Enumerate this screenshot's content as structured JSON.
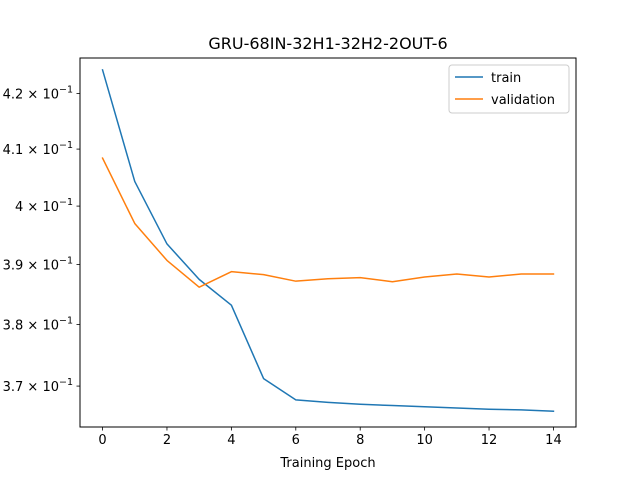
{
  "chart_data": {
    "type": "line",
    "title": "GRU-68IN-32H1-32H2-2OUT-6",
    "xlabel": "Training Epoch",
    "ylabel": "",
    "x": [
      0,
      1,
      2,
      3,
      4,
      5,
      6,
      7,
      8,
      9,
      10,
      11,
      12,
      13,
      14
    ],
    "xlim": [
      -0.7,
      14.7
    ],
    "ylim": [
      0.3635,
      0.4265
    ],
    "yscale": "log",
    "grid": false,
    "legend_position": "top-right",
    "x_ticks": [
      0,
      2,
      4,
      6,
      8,
      10,
      12,
      14
    ],
    "x_tick_labels": [
      "0",
      "2",
      "4",
      "6",
      "8",
      "10",
      "12",
      "14"
    ],
    "y_ticks": [
      0.37,
      0.38,
      0.39,
      0.4,
      0.41,
      0.42
    ],
    "y_tick_labels": [
      {
        "mantissa": "3.7",
        "exp": "−1"
      },
      {
        "mantissa": "3.8",
        "exp": "−1"
      },
      {
        "mantissa": "3.9",
        "exp": "−1"
      },
      {
        "mantissa": "4",
        "exp": "−1"
      },
      {
        "mantissa": "4.1",
        "exp": "−1"
      },
      {
        "mantissa": "4.2",
        "exp": "−1"
      }
    ],
    "series": [
      {
        "name": "train",
        "color": "#1f77b4",
        "values": [
          0.4243,
          0.4043,
          0.3935,
          0.3875,
          0.3832,
          0.3712,
          0.3678,
          0.3674,
          0.3671,
          0.3669,
          0.3667,
          0.3665,
          0.3663,
          0.3662,
          0.366
        ]
      },
      {
        "name": "validation",
        "color": "#ff7f0e",
        "values": [
          0.4084,
          0.397,
          0.3907,
          0.3862,
          0.3888,
          0.3883,
          0.3872,
          0.3876,
          0.3878,
          0.3871,
          0.3879,
          0.3884,
          0.3879,
          0.3884,
          0.3884
        ]
      }
    ]
  }
}
